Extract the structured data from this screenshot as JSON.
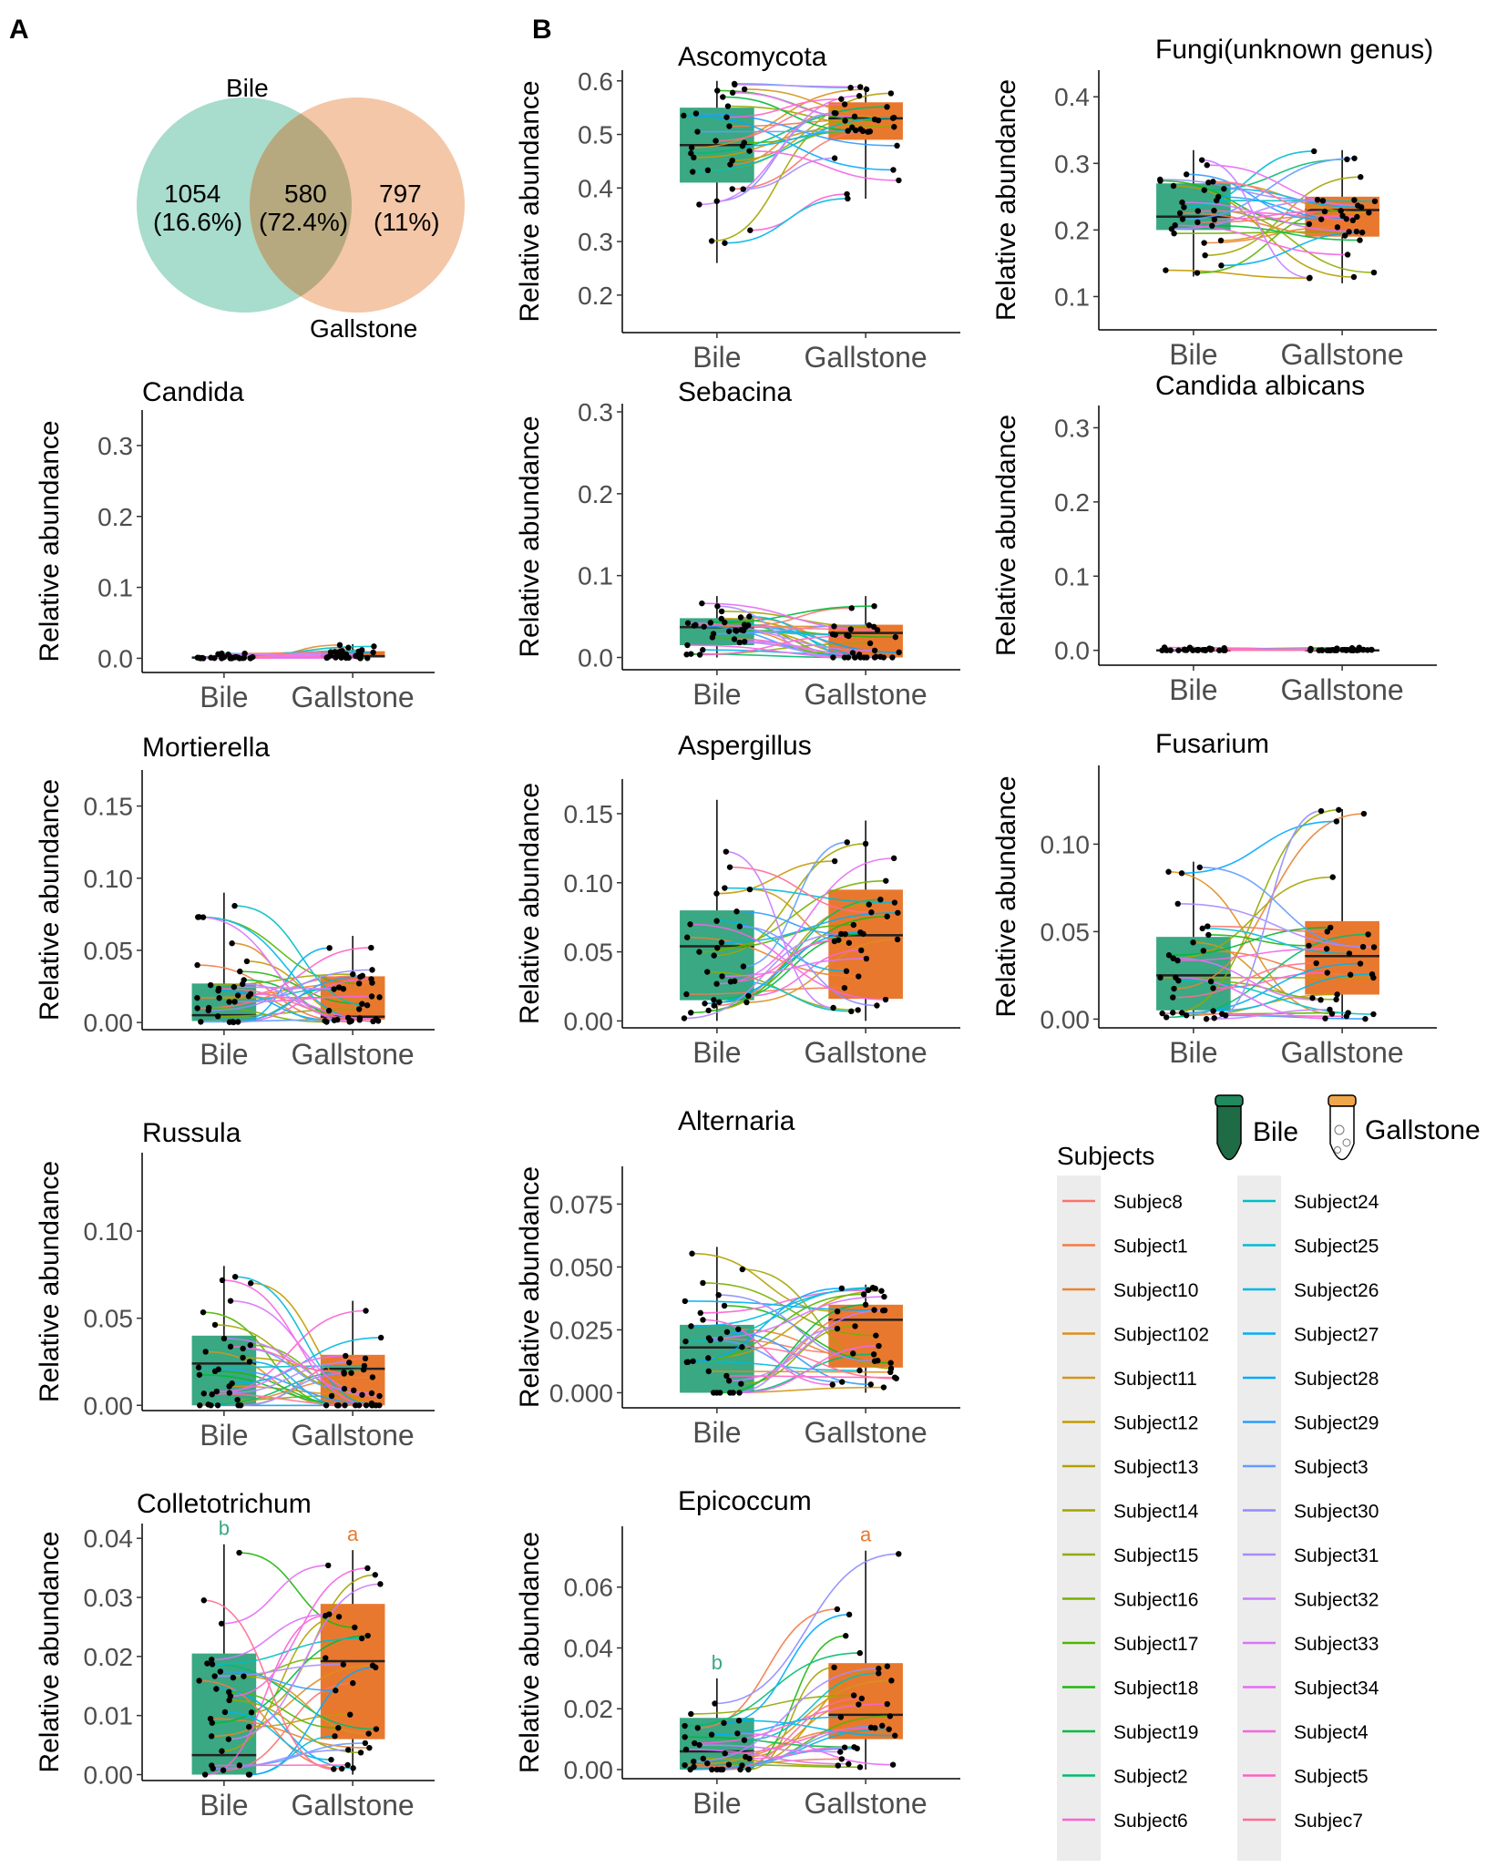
{
  "panels": {
    "A": "A",
    "B": "B"
  },
  "venn": {
    "left_label": "Bile",
    "right_label": "Gallstone",
    "left_count": "1054",
    "left_pct": "(16.6%)",
    "mid_count": "580",
    "mid_pct": "(72.4%)",
    "right_count": "797",
    "right_pct": "(11%)",
    "colors": {
      "left": "#a8dccc",
      "right": "#f4c7a8",
      "overlap": "#b6a97f"
    }
  },
  "common": {
    "ylabel": "Relative abundance",
    "categories": [
      "Bile",
      "Gallstone"
    ]
  },
  "colors": {
    "bile_box": "#3aa882",
    "gallstone_box": "#e9782f",
    "bile_sig": "#3aa882",
    "gallstone_sig": "#e9782f"
  },
  "chart_data": [
    {
      "id": "ascomycota",
      "type": "box",
      "title": "Ascomycota",
      "ylim": [
        0.13,
        0.62
      ],
      "yticks": [
        0.2,
        0.3,
        0.4,
        0.5,
        0.6
      ],
      "tick_labels": [
        "0.2",
        "0.3",
        "0.4",
        "0.5",
        "0.6"
      ],
      "bile": {
        "min": 0.26,
        "q1": 0.41,
        "median": 0.48,
        "q3": 0.55,
        "max": 0.6
      },
      "gallstone": {
        "min": 0.38,
        "q1": 0.49,
        "median": 0.53,
        "q3": 0.56,
        "max": 0.59
      }
    },
    {
      "id": "fungi-unknown",
      "type": "box",
      "title": "Fungi(unknown genus)",
      "ylim": [
        0.05,
        0.44
      ],
      "yticks": [
        0.1,
        0.2,
        0.3,
        0.4
      ],
      "tick_labels": [
        "0.1",
        "0.2",
        "0.3",
        "0.4"
      ],
      "bile": {
        "min": 0.13,
        "q1": 0.2,
        "median": 0.22,
        "q3": 0.27,
        "max": 0.32
      },
      "gallstone": {
        "min": 0.12,
        "q1": 0.19,
        "median": 0.23,
        "q3": 0.25,
        "max": 0.32
      }
    },
    {
      "id": "candida",
      "type": "box",
      "title": "Candida",
      "ylim": [
        -0.02,
        0.35
      ],
      "yticks": [
        0.0,
        0.1,
        0.2,
        0.3
      ],
      "tick_labels": [
        "0.0",
        "0.1",
        "0.2",
        "0.3"
      ],
      "bile": {
        "min": 0.0,
        "q1": 0.0,
        "median": 0.001,
        "q3": 0.002,
        "max": 0.008
      },
      "gallstone": {
        "min": 0.0,
        "q1": 0.001,
        "median": 0.003,
        "q3": 0.01,
        "max": 0.02
      }
    },
    {
      "id": "sebacina",
      "type": "box",
      "title": "Sebacina",
      "ylim": [
        -0.015,
        0.31
      ],
      "yticks": [
        0.0,
        0.1,
        0.2,
        0.3
      ],
      "tick_labels": [
        "0.0",
        "0.1",
        "0.2",
        "0.3"
      ],
      "bile": {
        "min": 0.0,
        "q1": 0.015,
        "median": 0.037,
        "q3": 0.048,
        "max": 0.075
      },
      "gallstone": {
        "min": 0.0,
        "q1": 0.0,
        "median": 0.03,
        "q3": 0.04,
        "max": 0.075
      }
    },
    {
      "id": "candida-albicans",
      "type": "box",
      "title": "Candida albicans",
      "ylim": [
        -0.02,
        0.33
      ],
      "yticks": [
        0.0,
        0.1,
        0.2,
        0.3
      ],
      "tick_labels": [
        "0.0",
        "0.1",
        "0.2",
        "0.3"
      ],
      "bile": {
        "min": 0.0,
        "q1": 0.0,
        "median": 0.0,
        "q3": 0.001,
        "max": 0.005
      },
      "gallstone": {
        "min": 0.0,
        "q1": 0.0,
        "median": 0.0,
        "q3": 0.001,
        "max": 0.004
      }
    },
    {
      "id": "mortierella",
      "type": "box",
      "title": "Mortierella",
      "ylim": [
        -0.005,
        0.175
      ],
      "yticks": [
        0.0,
        0.05,
        0.1,
        0.15
      ],
      "tick_labels": [
        "0.00",
        "0.05",
        "0.10",
        "0.15"
      ],
      "bile": {
        "min": 0.0,
        "q1": 0.001,
        "median": 0.005,
        "q3": 0.027,
        "max": 0.09
      },
      "gallstone": {
        "min": 0.0,
        "q1": 0.002,
        "median": 0.004,
        "q3": 0.032,
        "max": 0.06
      }
    },
    {
      "id": "aspergillus",
      "type": "box",
      "title": "Aspergillus",
      "ylim": [
        -0.005,
        0.175
      ],
      "yticks": [
        0.0,
        0.05,
        0.1,
        0.15
      ],
      "tick_labels": [
        "0.00",
        "0.05",
        "0.10",
        "0.15"
      ],
      "bile": {
        "min": 0.0,
        "q1": 0.015,
        "median": 0.054,
        "q3": 0.08,
        "max": 0.16
      },
      "gallstone": {
        "min": 0.0,
        "q1": 0.016,
        "median": 0.062,
        "q3": 0.095,
        "max": 0.145
      }
    },
    {
      "id": "fusarium",
      "type": "box",
      "title": "Fusarium",
      "ylim": [
        -0.005,
        0.145
      ],
      "yticks": [
        0.0,
        0.05,
        0.1
      ],
      "tick_labels": [
        "0.00",
        "0.05",
        "0.10"
      ],
      "bile": {
        "min": 0.0,
        "q1": 0.005,
        "median": 0.025,
        "q3": 0.047,
        "max": 0.09
      },
      "gallstone": {
        "min": 0.0,
        "q1": 0.014,
        "median": 0.036,
        "q3": 0.056,
        "max": 0.12
      }
    },
    {
      "id": "russula",
      "type": "box",
      "title": "Russula",
      "ylim": [
        -0.003,
        0.145
      ],
      "yticks": [
        0.0,
        0.05,
        0.1
      ],
      "tick_labels": [
        "0.00",
        "0.05",
        "0.10"
      ],
      "bile": {
        "min": 0.0,
        "q1": 0.0,
        "median": 0.024,
        "q3": 0.04,
        "max": 0.08
      },
      "gallstone": {
        "min": 0.0,
        "q1": 0.0,
        "median": 0.021,
        "q3": 0.029,
        "max": 0.06
      }
    },
    {
      "id": "alternaria",
      "type": "box",
      "title": "Alternaria",
      "ylim": [
        -0.006,
        0.09
      ],
      "yticks": [
        0.0,
        0.025,
        0.05,
        0.075
      ],
      "tick_labels": [
        "0.000",
        "0.025",
        "0.050",
        "0.075"
      ],
      "bile": {
        "min": 0.0,
        "q1": 0.0,
        "median": 0.018,
        "q3": 0.027,
        "max": 0.058
      },
      "gallstone": {
        "min": 0.0,
        "q1": 0.01,
        "median": 0.029,
        "q3": 0.035,
        "max": 0.043
      }
    },
    {
      "id": "colletotrichum",
      "type": "box",
      "title": "Colletotrichum",
      "ylim": [
        -0.001,
        0.0425
      ],
      "yticks": [
        0.0,
        0.01,
        0.02,
        0.03,
        0.04
      ],
      "tick_labels": [
        "0.00",
        "0.01",
        "0.02",
        "0.03",
        "0.04"
      ],
      "bile": {
        "min": 0.0,
        "q1": 0.0,
        "median": 0.0033,
        "q3": 0.0205,
        "max": 0.039
      },
      "gallstone": {
        "min": 0.0,
        "q1": 0.006,
        "median": 0.0192,
        "q3": 0.0289,
        "max": 0.038
      },
      "sig": {
        "bile": "b",
        "gallstone": "a"
      }
    },
    {
      "id": "epicoccum",
      "type": "box",
      "title": "Epicoccum",
      "ylim": [
        -0.003,
        0.08
      ],
      "yticks": [
        0.0,
        0.02,
        0.04,
        0.06
      ],
      "tick_labels": [
        "0.00",
        "0.02",
        "0.04",
        "0.06"
      ],
      "bile": {
        "min": 0.0,
        "q1": 0.0,
        "median": 0.006,
        "q3": 0.017,
        "max": 0.03
      },
      "gallstone": {
        "min": 0.0,
        "q1": 0.01,
        "median": 0.018,
        "q3": 0.035,
        "max": 0.072
      },
      "sig": {
        "bile": "b",
        "gallstone": "a"
      }
    }
  ],
  "legend": {
    "title": "Subjects",
    "bile_tube_label": "Bile",
    "gallstone_tube_label": "Gallstone",
    "col1": [
      {
        "label": "Subjec8",
        "color": "#f8766d"
      },
      {
        "label": "Subject1",
        "color": "#f47a45"
      },
      {
        "label": "Subject10",
        "color": "#ea8331"
      },
      {
        "label": "Subject102",
        "color": "#dc8e1f"
      },
      {
        "label": "Subject11",
        "color": "#d19618"
      },
      {
        "label": "Subject12",
        "color": "#c49a00"
      },
      {
        "label": "Subject13",
        "color": "#b3a000"
      },
      {
        "label": "Subject14",
        "color": "#a3a500"
      },
      {
        "label": "Subject15",
        "color": "#8fab00"
      },
      {
        "label": "Subject16",
        "color": "#76b000"
      },
      {
        "label": "Subject17",
        "color": "#53b400"
      },
      {
        "label": "Subject18",
        "color": "#1eb80c"
      },
      {
        "label": "Subject19",
        "color": "#00ba38"
      },
      {
        "label": "Subject2",
        "color": "#00bc6e"
      },
      {
        "label": "Subject6",
        "color": "#fc61d5"
      }
    ],
    "col2": [
      {
        "label": "Subject24",
        "color": "#00bfc4"
      },
      {
        "label": "Subject25",
        "color": "#00bbd6"
      },
      {
        "label": "Subject26",
        "color": "#00b6e6"
      },
      {
        "label": "Subject27",
        "color": "#00b0f0"
      },
      {
        "label": "Subject28",
        "color": "#00a9ff"
      },
      {
        "label": "Subject29",
        "color": "#2c9cff"
      },
      {
        "label": "Subject3",
        "color": "#619cff"
      },
      {
        "label": "Subject30",
        "color": "#8e8cff"
      },
      {
        "label": "Subject31",
        "color": "#a98bfc"
      },
      {
        "label": "Subject32",
        "color": "#c77cff"
      },
      {
        "label": "Subject33",
        "color": "#db72fb"
      },
      {
        "label": "Subject34",
        "color": "#e76bf3"
      },
      {
        "label": "Subject4",
        "color": "#f564e3"
      },
      {
        "label": "Subject5",
        "color": "#ff61c3"
      },
      {
        "label": "Subjec7",
        "color": "#ff6c91"
      }
    ]
  }
}
